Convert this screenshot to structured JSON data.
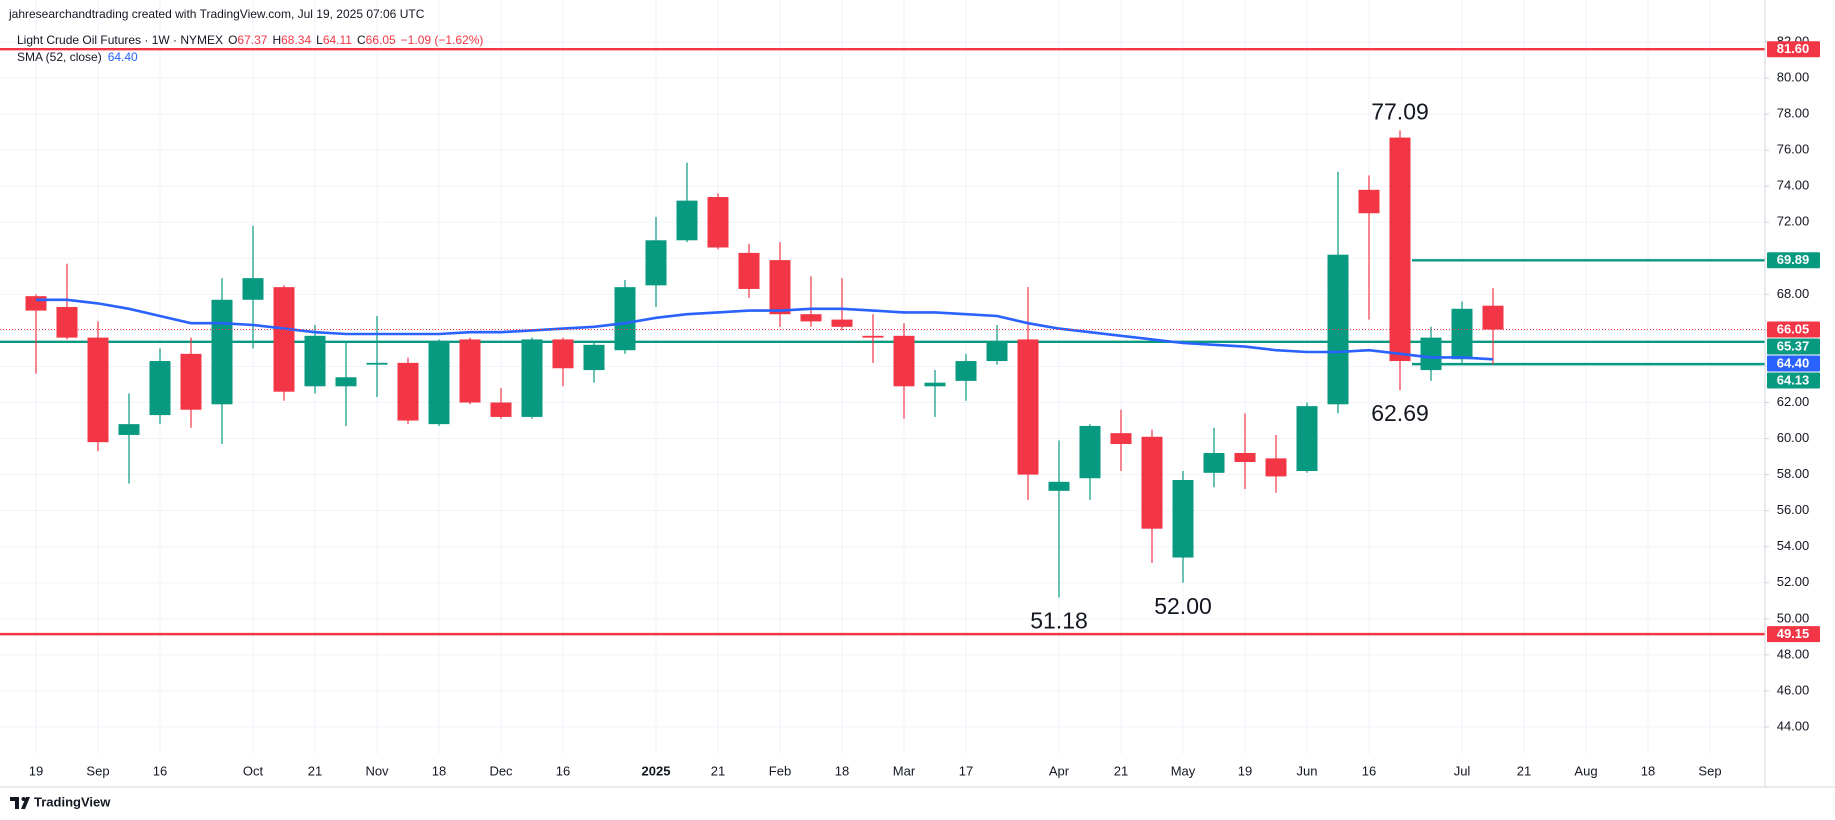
{
  "header": {
    "credit": "jahresearchandtrading created with TradingView.com, Jul 19, 2025 07:06 UTC",
    "brand": "TradingView"
  },
  "chart_data": {
    "type": "candlestick",
    "legend": {
      "symbol": "Light Crude Oil Futures · 1W · NYMEX",
      "fields": [
        "O",
        "H",
        "L",
        "C"
      ],
      "change": "−1.09 (−1.62%)"
    },
    "categories": [
      "19",
      null,
      "Sep",
      null,
      "16",
      null,
      null,
      "Oct",
      null,
      "21",
      null,
      "Nov",
      null,
      "18",
      null,
      "Dec",
      null,
      "16",
      null,
      null,
      "2025",
      null,
      "21",
      null,
      "Feb",
      null,
      "18",
      null,
      "Mar",
      null,
      "17",
      null,
      null,
      "Apr",
      null,
      "21",
      null,
      "May",
      null,
      "19",
      null,
      "Jun",
      null,
      "16",
      null,
      null,
      "Jul",
      null,
      "21",
      null,
      "Aug",
      null,
      "18",
      null,
      "Sep"
    ],
    "series": [
      {
        "name": "Light Crude Oil Futures",
        "up_color": "#089981",
        "down_color": "#f23645",
        "open": [
          67.9,
          67.3,
          65.6,
          60.2,
          61.3,
          64.7,
          61.9,
          67.7,
          68.4,
          62.9,
          62.9,
          64.1,
          64.2,
          60.8,
          65.5,
          62.0,
          61.2,
          65.5,
          63.8,
          64.9,
          68.5,
          71.0,
          73.4,
          70.3,
          69.9,
          66.9,
          66.6,
          65.7,
          65.7,
          62.9,
          63.2,
          64.3,
          65.5,
          57.1,
          57.8,
          60.3,
          60.1,
          53.4,
          58.1,
          59.2,
          58.9,
          58.2,
          61.9,
          73.8,
          76.7,
          63.8,
          64.4,
          67.37,
          null,
          null,
          null,
          null,
          null,
          null,
          null
        ],
        "high": [
          68.0,
          69.7,
          66.5,
          62.5,
          65.0,
          65.6,
          68.9,
          71.8,
          68.5,
          66.3,
          65.4,
          66.8,
          64.5,
          65.5,
          65.6,
          62.8,
          65.6,
          65.6,
          65.4,
          68.8,
          72.3,
          75.3,
          73.6,
          70.8,
          70.9,
          69.0,
          68.9,
          66.9,
          66.4,
          63.8,
          64.7,
          66.3,
          68.4,
          59.9,
          60.8,
          61.6,
          60.5,
          58.2,
          60.6,
          61.4,
          60.2,
          62.0,
          74.8,
          74.6,
          77.09,
          66.2,
          67.6,
          68.34,
          null,
          null,
          null,
          null,
          null,
          null,
          null
        ],
        "low": [
          63.6,
          65.5,
          59.3,
          57.5,
          60.8,
          60.6,
          59.7,
          65.0,
          62.1,
          62.5,
          60.7,
          62.3,
          60.8,
          60.7,
          61.9,
          61.1,
          61.1,
          62.9,
          63.1,
          64.7,
          67.3,
          70.9,
          70.5,
          67.8,
          66.2,
          66.2,
          66.0,
          64.2,
          61.1,
          61.2,
          62.1,
          64.1,
          56.6,
          51.18,
          56.6,
          58.2,
          53.1,
          52,
          57.3,
          57.2,
          57.0,
          58.1,
          61.4,
          66.6,
          62.69,
          63.2,
          64.2,
          64.11,
          null,
          null,
          null,
          null,
          null,
          null,
          null
        ],
        "close": [
          67.1,
          65.6,
          59.8,
          60.8,
          64.3,
          61.6,
          67.7,
          68.9,
          62.6,
          65.7,
          63.4,
          64.2,
          61.0,
          65.4,
          62.0,
          61.2,
          65.5,
          63.9,
          65.2,
          68.4,
          71.0,
          73.2,
          70.6,
          68.3,
          66.9,
          66.5,
          66.2,
          65.6,
          62.9,
          63.1,
          64.3,
          65.4,
          58.0,
          57.6,
          60.7,
          59.7,
          55.0,
          57.7,
          59.2,
          58.7,
          57.9,
          61.8,
          70.2,
          72.5,
          64.3,
          65.6,
          67.2,
          66.05,
          null,
          null,
          null,
          null,
          null,
          null,
          null
        ]
      },
      {
        "name": "SMA (52, close)",
        "color": "#2962ff",
        "values": [
          67.7,
          67.7,
          67.5,
          67.2,
          66.8,
          66.4,
          66.4,
          66.3,
          66.1,
          65.9,
          65.8,
          65.8,
          65.8,
          65.8,
          65.9,
          65.9,
          66.0,
          66.1,
          66.2,
          66.4,
          66.7,
          66.9,
          67.0,
          67.1,
          67.1,
          67.2,
          67.2,
          67.1,
          67.0,
          67.0,
          66.9,
          66.8,
          66.4,
          66.1,
          65.9,
          65.7,
          65.5,
          65.3,
          65.2,
          65.1,
          64.9,
          64.8,
          64.8,
          64.9,
          64.7,
          64.5,
          64.5,
          64.4,
          null,
          null,
          null,
          null,
          null,
          null,
          null
        ],
        "value_labels": [
          null,
          null,
          null,
          null,
          null,
          null,
          null,
          null,
          null,
          null,
          null,
          null,
          null,
          null,
          null,
          null,
          null,
          null,
          null,
          null,
          null,
          null,
          null,
          null,
          null,
          null,
          null,
          null,
          null,
          null,
          null,
          null,
          null,
          null,
          null,
          null,
          null,
          null,
          null,
          null,
          null,
          null,
          null,
          null,
          null,
          null,
          null,
          "64.40",
          null,
          null,
          null,
          null,
          null,
          null,
          null
        ]
      }
    ],
    "levels": [
      {
        "value": 81.6,
        "label": "81.60",
        "color": "#f23645",
        "extend": "full"
      },
      {
        "value": 69.89,
        "color": "#089981",
        "extend": "right"
      },
      {
        "value": 65.37,
        "color": "#089981",
        "extend": "full"
      },
      {
        "value": 64.13,
        "color": "#089981",
        "extend": "right"
      },
      {
        "value": 49.15,
        "color": "#f23645",
        "extend": "full"
      }
    ],
    "annotations": [
      {
        "value": 77.09
      },
      {
        "value": 62.69
      },
      {
        "value": 51.18
      },
      {
        "value": 52,
        "label": "52.00"
      }
    ],
    "ylim": [
      42.5,
      82.5
    ],
    "yticks": [
      {
        "value": 44,
        "label": "44.00"
      },
      {
        "value": 46,
        "label": "46.00"
      },
      {
        "value": 48,
        "label": "48.00"
      },
      {
        "value": 50,
        "label": "50.00"
      },
      {
        "value": 52,
        "label": "52.00"
      },
      {
        "value": 54,
        "label": "54.00"
      },
      {
        "value": 56,
        "label": "56.00"
      },
      {
        "value": 58,
        "label": "58.00"
      },
      {
        "value": 60,
        "label": "60.00"
      },
      {
        "value": 62,
        "label": "62.00"
      },
      {
        "value": 64,
        "label": "64.00"
      },
      {
        "value": 66,
        "label": "66.00"
      },
      {
        "value": 68,
        "label": "68.00"
      },
      {
        "value": 70,
        "label": "70.00"
      },
      {
        "value": 72,
        "label": "72.00"
      },
      {
        "value": 74,
        "label": "74.00"
      },
      {
        "value": 76,
        "label": "76.00"
      },
      {
        "value": 78,
        "label": "78.00"
      },
      {
        "value": 80,
        "label": "80.00"
      },
      {
        "value": 82,
        "label": "82.00"
      }
    ],
    "grid": true
  }
}
